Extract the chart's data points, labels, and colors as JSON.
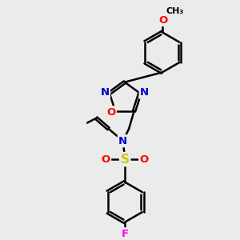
{
  "bg_color": "#ebebeb",
  "bond_color": "#000000",
  "bond_width": 1.8,
  "atom_colors": {
    "N": "#0000cc",
    "O": "#ff0000",
    "S": "#cccc00",
    "F": "#ff00ff",
    "C": "#000000"
  },
  "font_size": 9.5
}
